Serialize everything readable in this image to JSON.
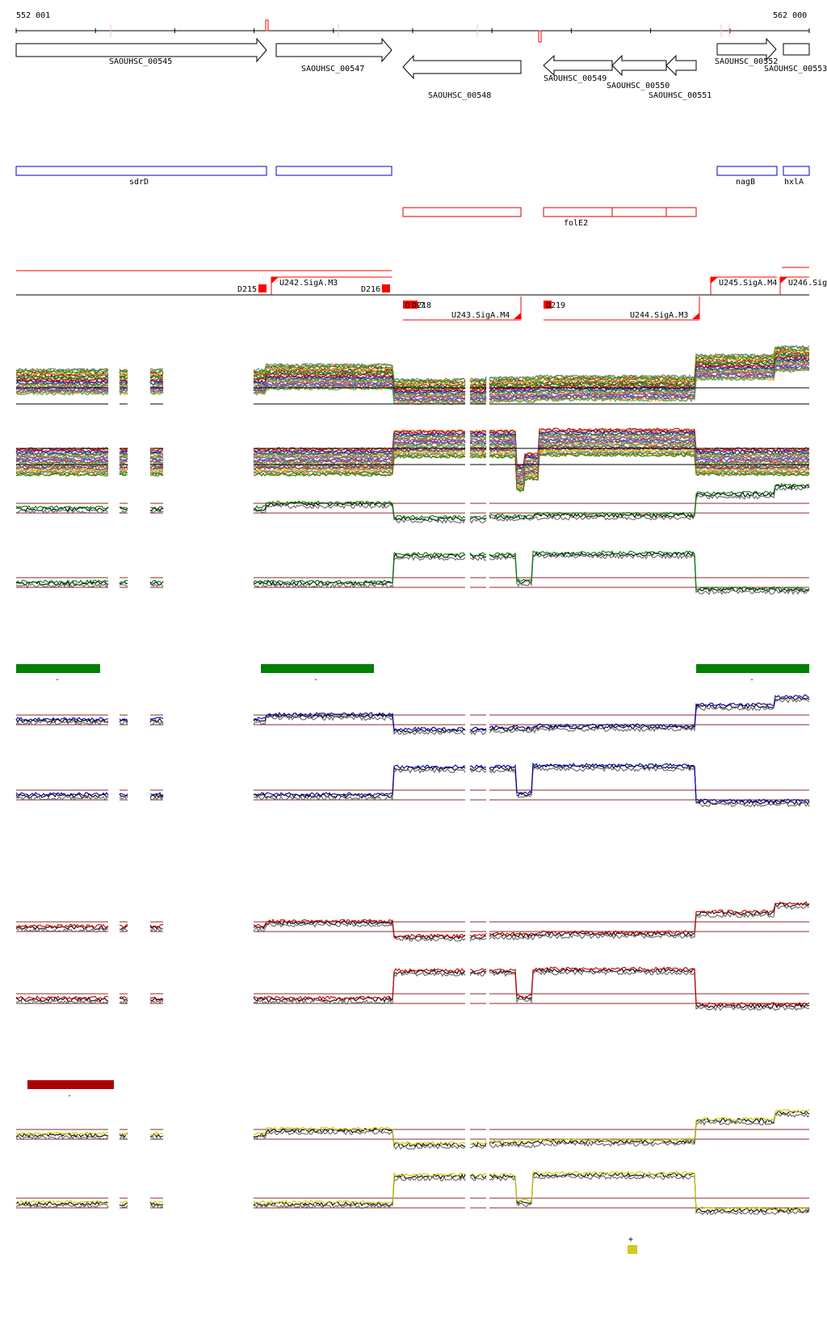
{
  "coords": {
    "start": "552 001",
    "end": "562 000"
  },
  "genes": [
    {
      "label": "SAOUHSC_00545",
      "dir": "fwd"
    },
    {
      "label": "SAOUHSC_00547",
      "dir": "fwd"
    },
    {
      "label": "SAOUHSC_00548",
      "dir": "rev"
    },
    {
      "label": "SAOUHSC_00549",
      "dir": "rev"
    },
    {
      "label": "SAOUHSC_00550",
      "dir": "rev"
    },
    {
      "label": "SAOUHSC_00551",
      "dir": "rev"
    },
    {
      "label": "SAOUHSC_00552",
      "dir": "fwd"
    },
    {
      "label": "SAOUHSC_00553",
      "dir": "fwd"
    }
  ],
  "gene_names_fwd": [
    "sdrD",
    "",
    "nagB",
    "hxlA"
  ],
  "gene_names_rev": [
    "folE2"
  ],
  "downstream_labels": [
    "D215",
    "D216",
    "D217",
    "D218",
    "D219"
  ],
  "upstream_labels": [
    "U242.SigA.M3",
    "U243.SigA.M4",
    "U244.SigA.M3",
    "U245.SigA.M4",
    "U246.Sig"
  ],
  "condition_bars": [
    "-",
    "-",
    "-",
    "-"
  ],
  "legend": {
    "symbol": "+"
  },
  "colors": {
    "gene_outline": "#000000",
    "fwd_gene_name": "#0000cc",
    "rev_gene_name": "#dd0000",
    "promoter": "#ff0000",
    "green_track": "#008000",
    "blue_track": "#0000aa",
    "red_track": "#cc0000",
    "yellow_track": "#cccc00",
    "darkred_bar": "#aa0000",
    "threshold_line": "#8b2b2b"
  }
}
